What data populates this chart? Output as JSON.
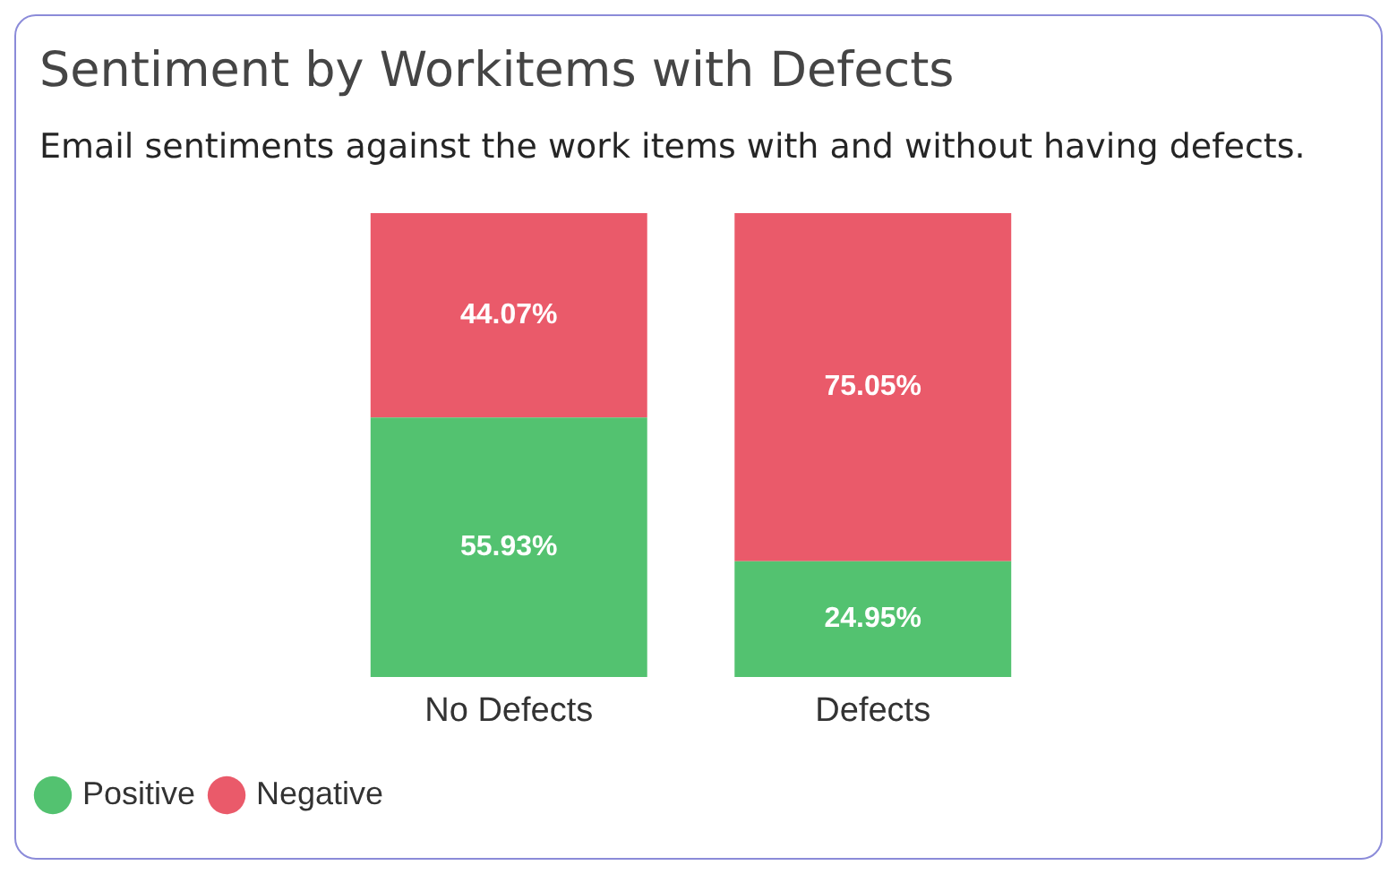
{
  "chart_data": {
    "type": "bar",
    "title": "Sentiment by Workitems with Defects",
    "subtitle": "Email sentiments against the work items with and without having defects.",
    "categories": [
      "No Defects",
      "Defects"
    ],
    "series": [
      {
        "name": "Positive",
        "color": "#53c270",
        "values": [
          55.93,
          24.95
        ],
        "value_labels": [
          "55.93%",
          "24.95%"
        ]
      },
      {
        "name": "Negative",
        "color": "#ea5a6a",
        "values": [
          44.07,
          75.05
        ],
        "value_labels": [
          "44.07%",
          "75.05%"
        ]
      }
    ],
    "stacked": true,
    "ylim": [
      0,
      100
    ],
    "tick_labels": "x",
    "grid": false,
    "legend": "bottom left"
  }
}
